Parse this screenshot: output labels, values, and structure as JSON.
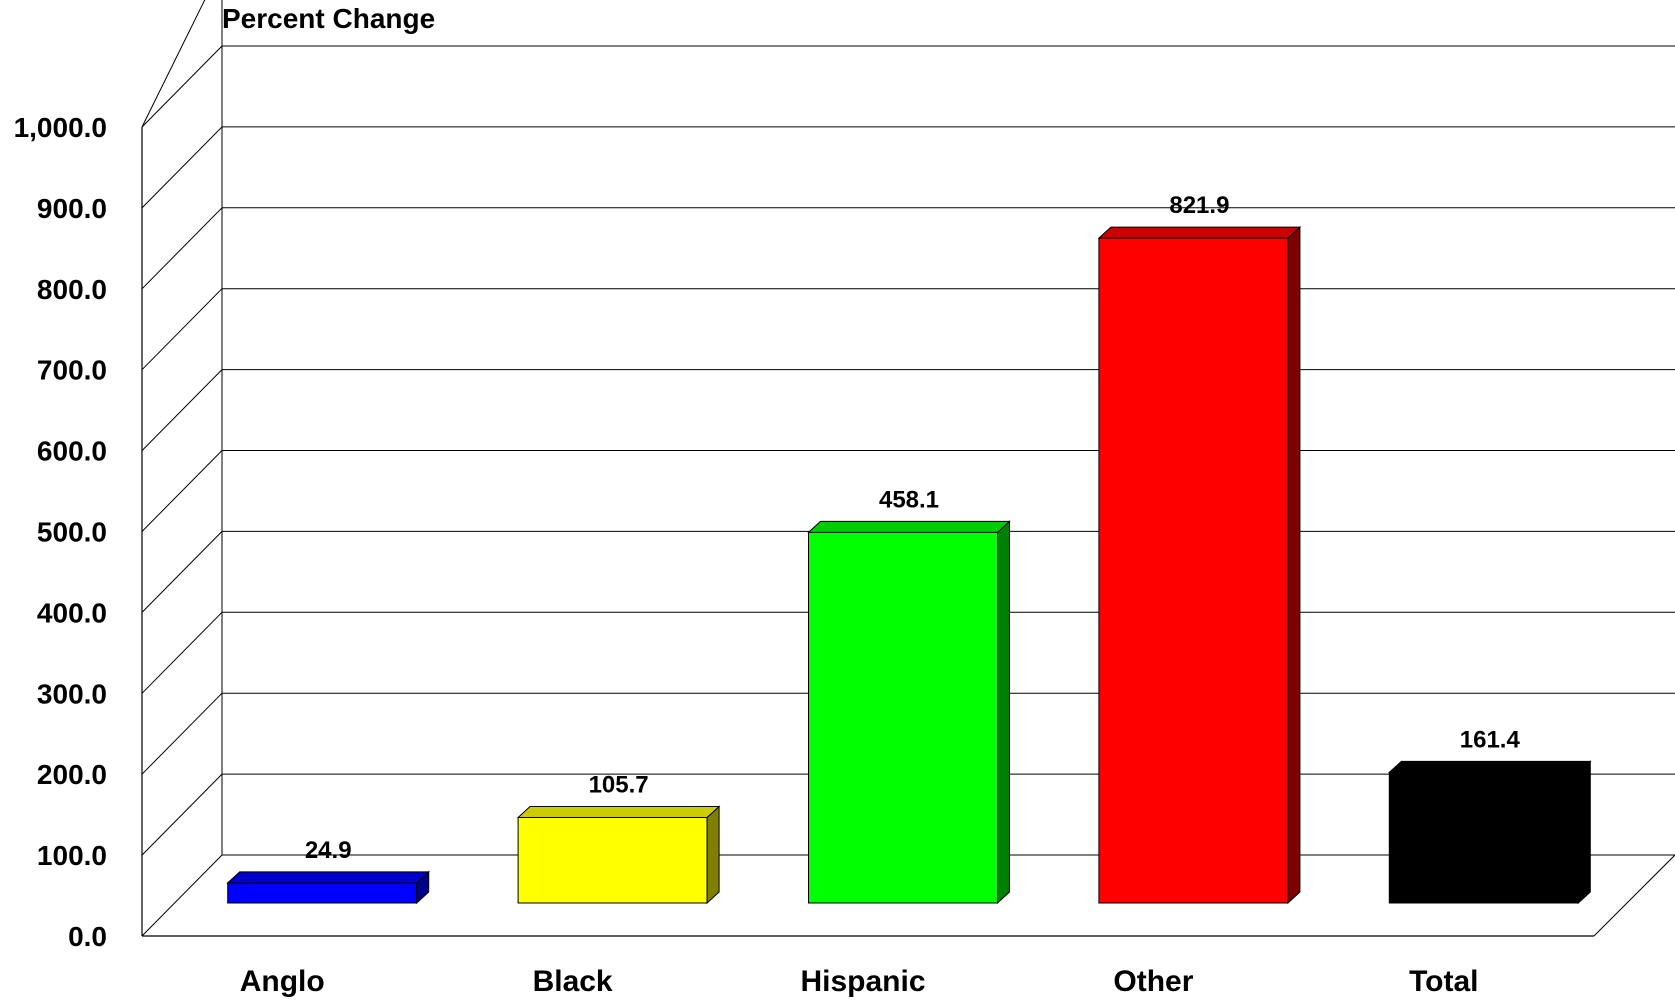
{
  "chart_data": {
    "type": "bar",
    "title": "Percent Change",
    "xlabel": "",
    "ylabel": "",
    "categories": [
      "Anglo",
      "Black",
      "Hispanic",
      "Other",
      "Total"
    ],
    "values": [
      24.9,
      105.7,
      458.1,
      821.9,
      161.4
    ],
    "value_labels": [
      "24.9",
      "105.7",
      "458.1",
      "821.9",
      "161.4"
    ],
    "ylim": [
      0,
      1000
    ],
    "yticks": [
      "0.0",
      "100.0",
      "200.0",
      "300.0",
      "400.0",
      "500.0",
      "600.0",
      "700.0",
      "800.0",
      "900.0",
      "1,000.0"
    ],
    "grid": true,
    "legend": "none",
    "three_d": true,
    "colors": [
      {
        "front": "#0000ff",
        "side": "#00008b",
        "top": "#0000cc"
      },
      {
        "front": "#ffff00",
        "side": "#808000",
        "top": "#cccc00"
      },
      {
        "front": "#00ff00",
        "side": "#008000",
        "top": "#00cc00"
      },
      {
        "front": "#ff0000",
        "side": "#800000",
        "top": "#cc0000"
      },
      {
        "front": "#000000",
        "side": "#000000",
        "top": "#000000"
      }
    ]
  }
}
